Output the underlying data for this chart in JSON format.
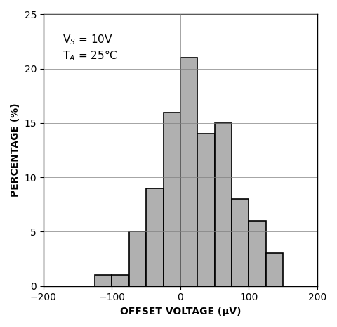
{
  "bin_lefts": [
    -125,
    -100,
    -75,
    -50,
    -25,
    0,
    25,
    50,
    75,
    100,
    125
  ],
  "heights": [
    1,
    1,
    5,
    9,
    16,
    21,
    14,
    15,
    8,
    6,
    3
  ],
  "bin_width": 25,
  "bar_color": "#b0b0b0",
  "bar_edgecolor": "#000000",
  "xlabel": "OFFSET VOLTAGE (μV)",
  "ylabel": "PERCENTAGE (%)",
  "xlim": [
    -200,
    200
  ],
  "ylim": [
    0,
    25
  ],
  "xticks": [
    -200,
    -100,
    0,
    100,
    200
  ],
  "yticks": [
    0,
    5,
    10,
    15,
    20,
    25
  ],
  "annotation_line1": "V$_S$ = 10V",
  "annotation_line2": "T$_A$ = 25°C",
  "figsize": [
    4.8,
    4.65
  ],
  "dpi": 100
}
